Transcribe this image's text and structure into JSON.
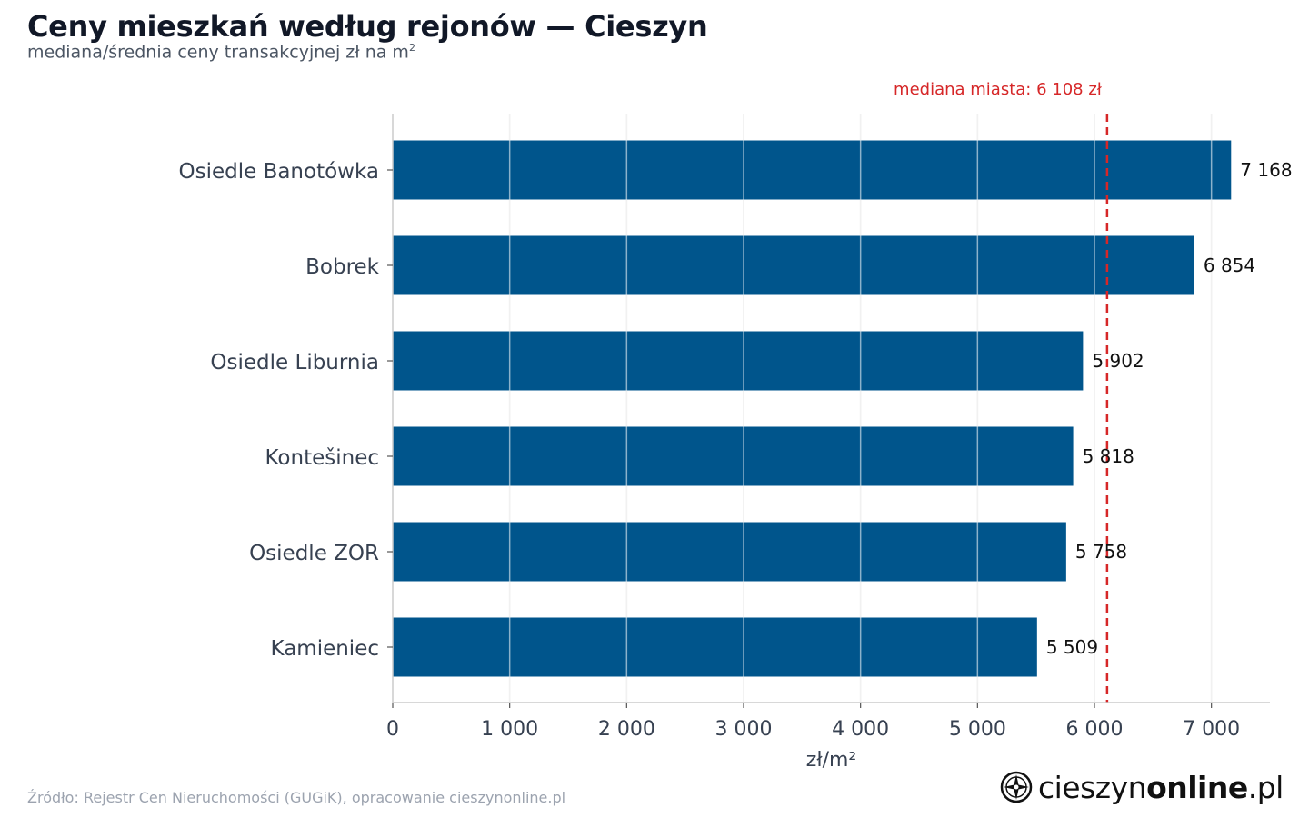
{
  "header": {
    "title": "Ceny mieszkań według rejonów — Cieszyn",
    "subtitle": "mediana/średnia ceny transakcyjnej zł na m",
    "subtitle_sup": "2"
  },
  "footer": {
    "source": "Źródło: Rejestr Cen Nieruchomości (GUGiK), opracowanie cieszynonline.pl"
  },
  "logo": {
    "icon": "compass-rose-icon",
    "text_normal": "cieszyn",
    "text_bold": "online",
    "text_suffix": ".pl"
  },
  "chart_data": {
    "type": "bar",
    "orientation": "horizontal",
    "categories": [
      "Osiedle Banotówka",
      "Bobrek",
      "Osiedle Liburnia",
      "Kontešinec",
      "Osiedle ZOR",
      "Kamieniec"
    ],
    "values": [
      7168,
      6854,
      5902,
      5818,
      5758,
      5509
    ],
    "value_labels": [
      "7 168",
      "6 854",
      "5 902",
      "5 818",
      "5 758",
      "5 509"
    ],
    "xlabel": "zł/m²",
    "ylabel": "",
    "xlim": [
      0,
      7500
    ],
    "xticks": [
      0,
      1000,
      2000,
      3000,
      4000,
      5000,
      6000,
      7000
    ],
    "xtick_labels": [
      "0",
      "1 000",
      "2 000",
      "3 000",
      "4 000",
      "5 000",
      "6 000",
      "7 000"
    ],
    "reference_line": {
      "value": 6108,
      "label": "mediana miasta: 6 108 zł",
      "style": "dashed"
    },
    "grid": "vertical",
    "colors": {
      "bar": "#00558c",
      "reference": "#d62728",
      "grid": "#e0e0e0",
      "axis": "#cccccc",
      "text": "#374151"
    }
  }
}
